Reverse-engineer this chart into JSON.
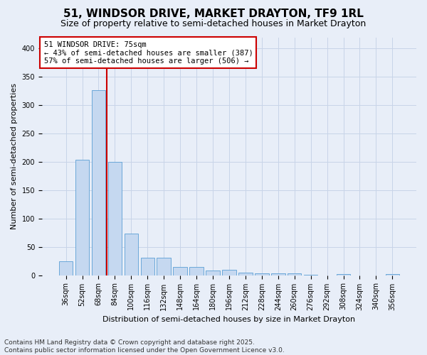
{
  "title": "51, WINDSOR DRIVE, MARKET DRAYTON, TF9 1RL",
  "subtitle": "Size of property relative to semi-detached houses in Market Drayton",
  "xlabel": "Distribution of semi-detached houses by size in Market Drayton",
  "ylabel": "Number of semi-detached properties",
  "footer_line1": "Contains HM Land Registry data © Crown copyright and database right 2025.",
  "footer_line2": "Contains public sector information licensed under the Open Government Licence v3.0.",
  "annotation_title": "51 WINDSOR DRIVE: 75sqm",
  "annotation_line2": "← 43% of semi-detached houses are smaller (387)",
  "annotation_line3": "57% of semi-detached houses are larger (506) →",
  "bar_labels": [
    "36sqm",
    "52sqm",
    "68sqm",
    "84sqm",
    "100sqm",
    "116sqm",
    "132sqm",
    "148sqm",
    "164sqm",
    "180sqm",
    "196sqm",
    "212sqm",
    "228sqm",
    "244sqm",
    "260sqm",
    "276sqm",
    "292sqm",
    "308sqm",
    "324sqm",
    "340sqm",
    "356sqm"
  ],
  "bar_values": [
    25,
    204,
    327,
    200,
    73,
    31,
    31,
    14,
    14,
    8,
    9,
    4,
    3,
    3,
    3,
    1,
    0,
    2,
    0,
    0,
    2
  ],
  "bar_color": "#c5d8f0",
  "bar_edge_color": "#5a9fd4",
  "grid_color": "#c8d4e8",
  "bg_color": "#e8eef8",
  "vline_color": "#cc0000",
  "annotation_box_edgecolor": "#cc0000",
  "annotation_box_facecolor": "#ffffff",
  "ylim": [
    0,
    420
  ],
  "yticks": [
    0,
    50,
    100,
    150,
    200,
    250,
    300,
    350,
    400
  ],
  "vline_x": 2.5,
  "title_fontsize": 11,
  "subtitle_fontsize": 9,
  "axis_label_fontsize": 8,
  "tick_fontsize": 7,
  "annotation_fontsize": 7.5,
  "footer_fontsize": 6.5
}
